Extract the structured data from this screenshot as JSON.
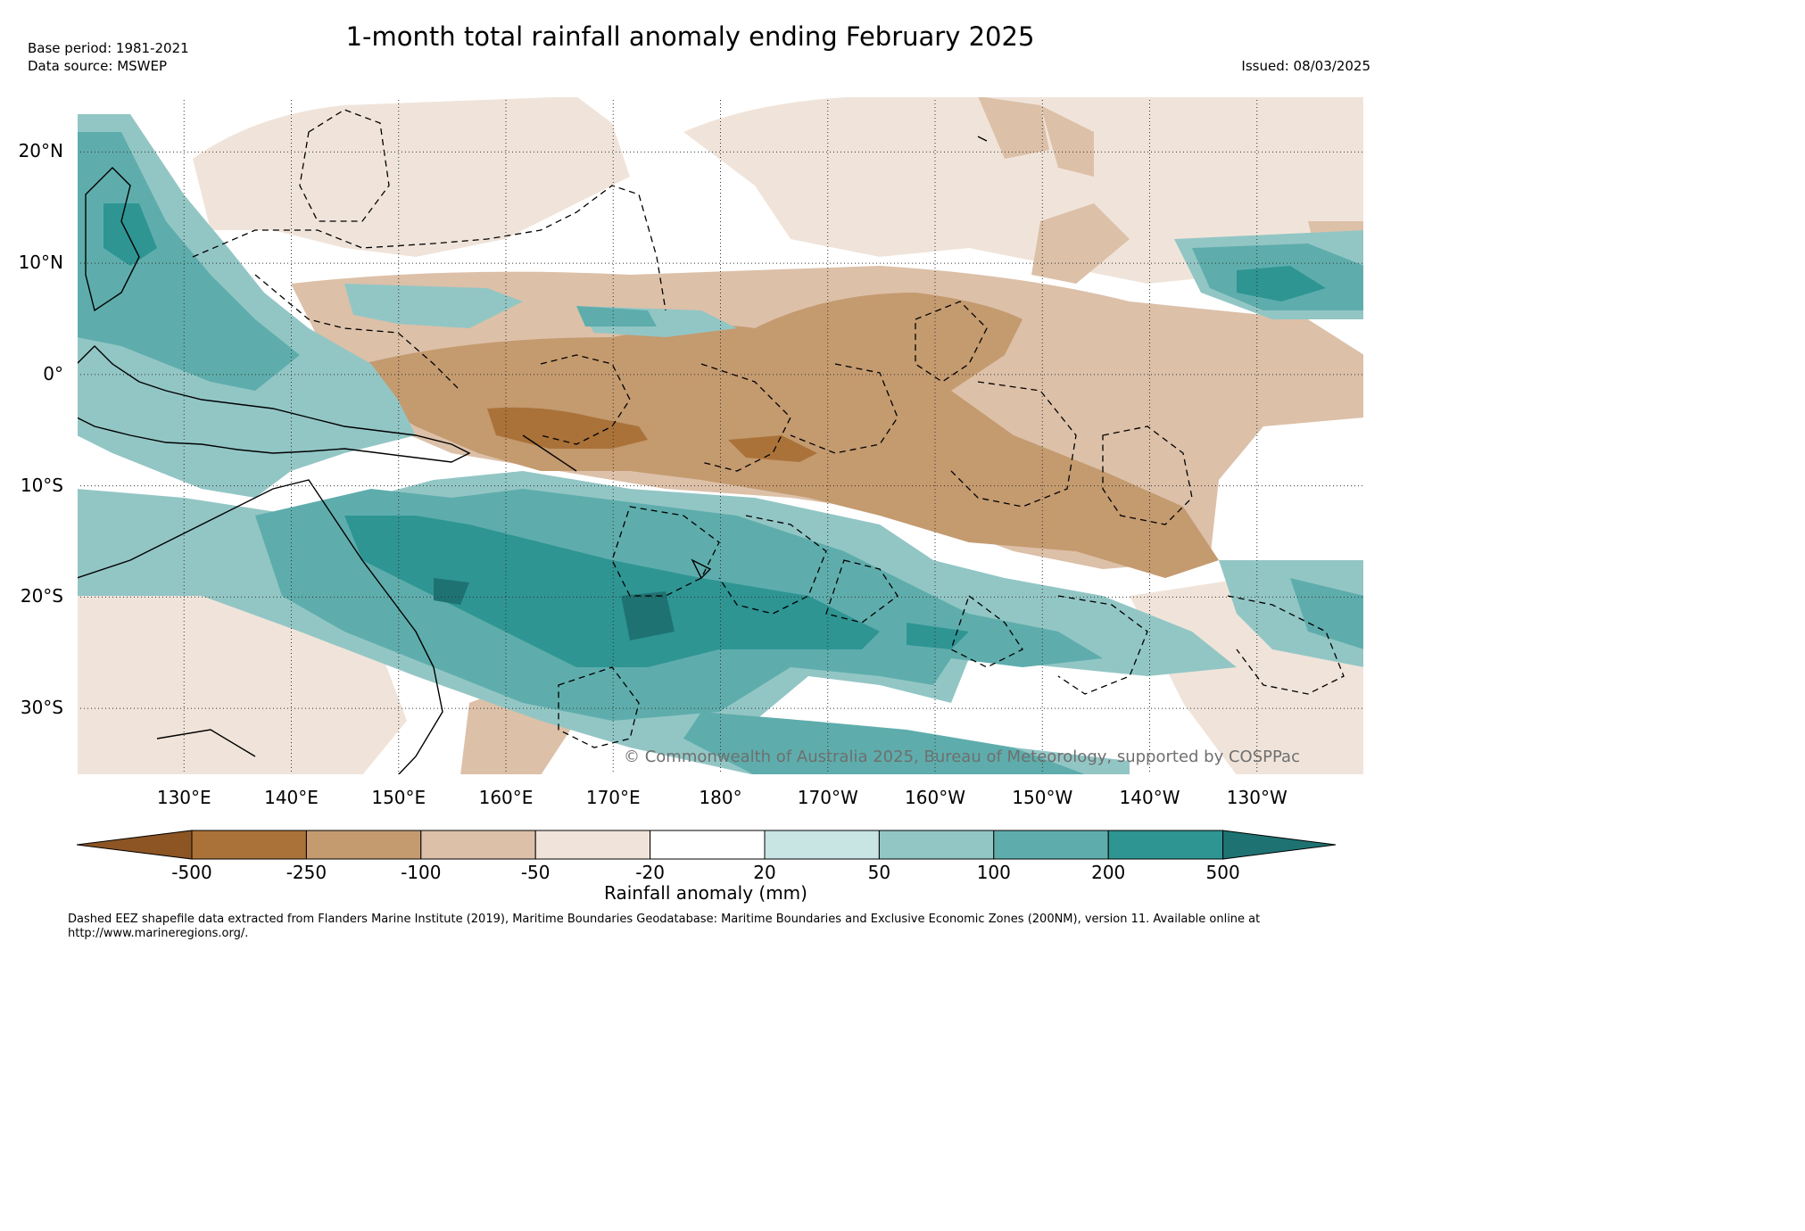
{
  "title": "1-month total rainfall anomaly ending February 2025",
  "base_period": "Base period: 1981-2021",
  "data_source": "Data source: MSWEP",
  "issued": "Issued: 08/03/2025",
  "copyright": "© Commonwealth of Australia 2025, Bureau of Meteorology, supported by COSPPac",
  "footnote": "Dashed EEZ shapefile data extracted from Flanders Marine Institute (2019), Maritime Boundaries Geodatabase: Maritime Boundaries and Exclusive Economic Zones (200NM), version 11. Available online at http://www.marineregions.org/.",
  "map": {
    "lat_labels": [
      "20°N",
      "10°N",
      "0°",
      "10°S",
      "20°S",
      "30°S"
    ],
    "lat_values": [
      20,
      10,
      0,
      -10,
      -20,
      -30
    ],
    "lon_labels": [
      "130°E",
      "140°E",
      "150°E",
      "160°E",
      "170°E",
      "180°",
      "170°W",
      "160°W",
      "150°W",
      "140°W",
      "130°W"
    ],
    "lon_values": [
      130,
      140,
      150,
      160,
      170,
      180,
      190,
      200,
      210,
      220,
      230
    ],
    "extent": {
      "lon_min": 120,
      "lon_max": 240,
      "lat_min": -36,
      "lat_max": 25
    },
    "gridlines": true
  },
  "colorbar": {
    "title": "Rainfall anomaly (mm)",
    "tick_labels": [
      "-500",
      "-250",
      "-100",
      "-50",
      "-20",
      "20",
      "50",
      "100",
      "200",
      "500"
    ],
    "colors": [
      "#8c5523",
      "#aa7239",
      "#c49a6f",
      "#dcc0a8",
      "#f0e4da",
      "#ffffff",
      "#c8e4e3",
      "#92c6c5",
      "#5eadac",
      "#2e9593",
      "#1e7372"
    ]
  }
}
